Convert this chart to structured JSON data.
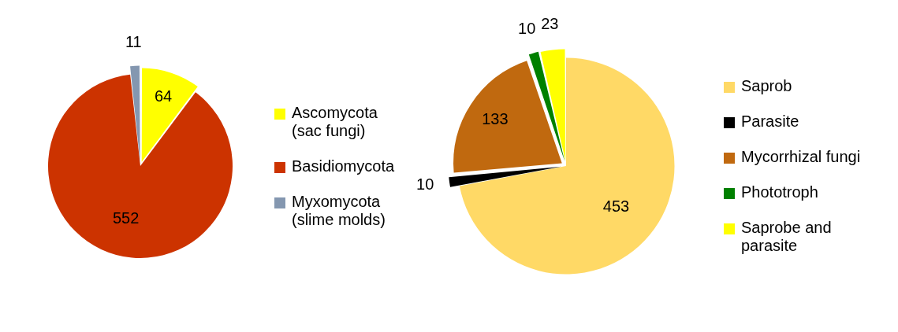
{
  "chart_data": [
    {
      "type": "pie",
      "categories": [
        "Ascomycota (sac fungi)",
        "Basidiomycota",
        "Myxomycota (slime molds)"
      ],
      "values": [
        64,
        552,
        11
      ],
      "colors": [
        "#ffff00",
        "#cc3300",
        "#8497b0"
      ],
      "data_labels": true,
      "legend": "right"
    },
    {
      "type": "pie",
      "categories": [
        "Saprob",
        "Parasite",
        "Mycorrhizal fungi",
        "Phototroph",
        "Saprobe and parasite"
      ],
      "values": [
        453,
        10,
        133,
        10,
        23
      ],
      "colors": [
        "#ffd966",
        "#000000",
        "#c0690f",
        "#008000",
        "#ffff00"
      ],
      "data_labels": true,
      "legend": "right"
    }
  ]
}
